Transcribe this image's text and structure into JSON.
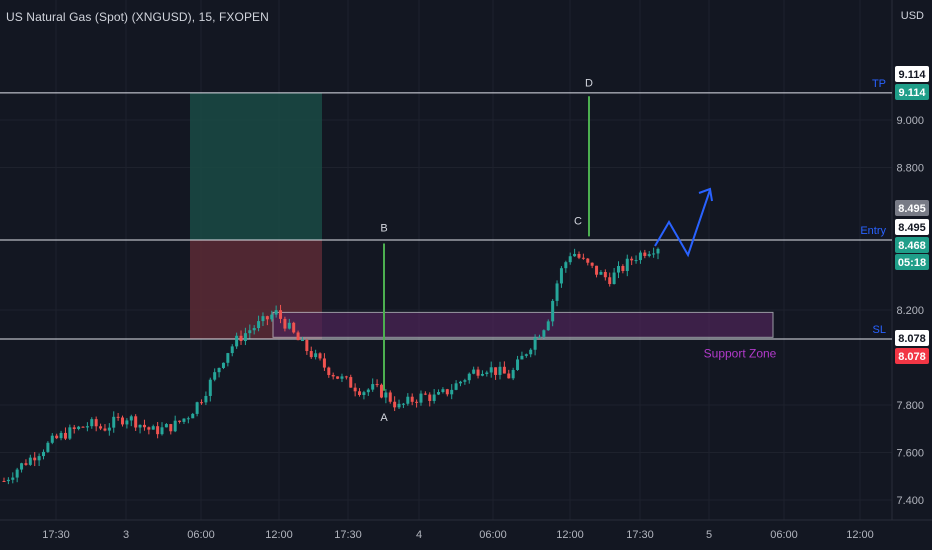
{
  "header": {
    "title": "US Natural Gas (Spot) (XNGUSD), 15, FXOPEN",
    "currency": "USD"
  },
  "colors": {
    "background": "#131722",
    "up": "#26a69a",
    "down": "#ef5350",
    "profit_zone": "#1a4a44",
    "loss_zone": "#5c2a35",
    "support_zone": "#4a2455",
    "arrow": "#2962ff",
    "wave_line": "#4caf50"
  },
  "chart_data": {
    "type": "candlestick",
    "symbol": "XNGUSD",
    "interval": "15",
    "y_ticks": [
      7.4,
      7.6,
      7.8,
      8.2,
      8.8,
      9.0
    ],
    "y_tick_labels": [
      "7.400",
      "7.600",
      "7.800",
      "8.200",
      "8.800",
      "9.000"
    ],
    "x_ticks": [
      "17:30",
      "3",
      "06:00",
      "12:00",
      "17:30",
      "4",
      "06:00",
      "12:00",
      "17:30",
      "5",
      "06:00",
      "12:00"
    ],
    "price_badges": [
      {
        "label": "9.114",
        "style": "white"
      },
      {
        "label": "9.114",
        "style": "green"
      },
      {
        "label": "8.495",
        "style": "gray"
      },
      {
        "label": "8.495",
        "style": "white"
      },
      {
        "label": "8.468",
        "style": "green"
      },
      {
        "label": "05:18",
        "style": "green"
      },
      {
        "label": "8.078",
        "style": "white"
      },
      {
        "label": "8.078",
        "style": "red"
      }
    ],
    "levels": [
      {
        "name": "TP",
        "price": 9.114
      },
      {
        "name": "Entry",
        "price": 8.495
      },
      {
        "name": "SL",
        "price": 8.078
      }
    ],
    "support_zone": {
      "label": "Support Zone",
      "top": 8.19,
      "bottom": 8.085
    },
    "wave_points": [
      {
        "label": "A",
        "price": 7.86
      },
      {
        "label": "B",
        "price": 8.48
      },
      {
        "label": "C",
        "price": 8.51
      },
      {
        "label": "D",
        "price": 9.1
      }
    ],
    "price_path": [
      7.48,
      7.53,
      7.57,
      7.61,
      7.65,
      7.68,
      7.7,
      7.72,
      7.7,
      7.73,
      7.75,
      7.72,
      7.69,
      7.7,
      7.72,
      7.76,
      7.83,
      7.92,
      8.02,
      8.08,
      8.12,
      8.15,
      8.19,
      8.13,
      8.06,
      8.01,
      7.96,
      7.92,
      7.89,
      7.86,
      7.87,
      7.84,
      7.79,
      7.82,
      7.84,
      7.83,
      7.86,
      7.9,
      7.94,
      7.96,
      7.94,
      7.92,
      8.0,
      8.08,
      8.15,
      8.35,
      8.45,
      8.4,
      8.36,
      8.33,
      8.37,
      8.42,
      8.45,
      8.47
    ]
  }
}
